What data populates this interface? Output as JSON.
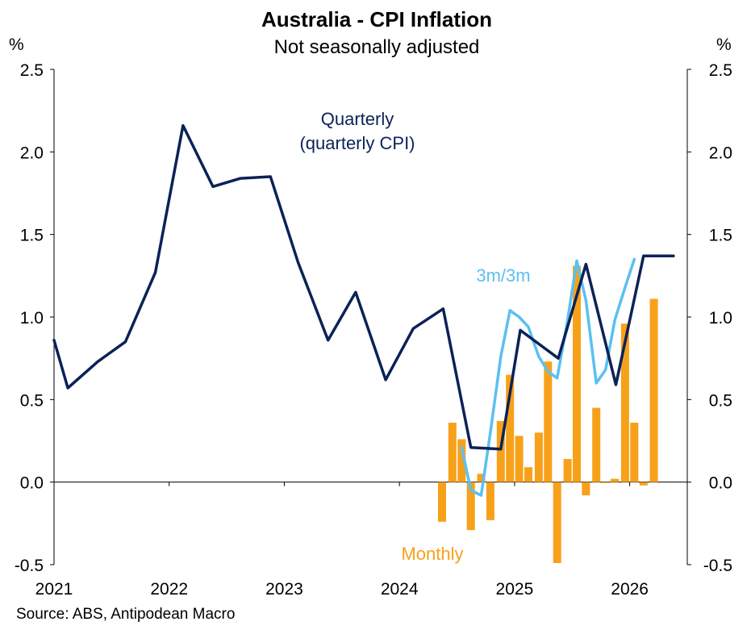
{
  "chart_data": {
    "type": "line+bar",
    "title": "Australia - CPI Inflation",
    "subtitle": "Not seasonally adjusted",
    "y_unit_left": "%",
    "y_unit_right": "%",
    "ylim": [
      -0.5,
      2.5
    ],
    "yticks": [
      "2.5",
      "2.0",
      "1.5",
      "1.0",
      "0.5",
      "0.0",
      "-0.5"
    ],
    "x_range": [
      2021.0,
      2026.5
    ],
    "x_tick_labels": [
      "2021",
      "2022",
      "2023",
      "2024",
      "2025",
      "2026"
    ],
    "grid": false,
    "source": "Source: ABS, Antipodean Macro",
    "annotations": {
      "quarterly_line1": "Quarterly",
      "quarterly_line2": "(quarterly CPI)",
      "three_month": "3m/3m",
      "monthly": "Monthly"
    },
    "colors": {
      "quarterly": "#0b2257",
      "three_month": "#5bc0f0",
      "monthly": "#f7a11a",
      "axis": "#000000"
    },
    "series": [
      {
        "name": "Quarterly (quarterly CPI)",
        "kind": "line",
        "x": [
          2021.0,
          2021.12,
          2021.38,
          2021.62,
          2021.88,
          2022.12,
          2022.38,
          2022.62,
          2022.88,
          2023.12,
          2023.38,
          2023.62,
          2023.88,
          2024.12,
          2024.38,
          2024.62,
          2024.88,
          2025.05,
          2025.38,
          2025.62,
          2025.88,
          2026.12,
          2026.38
        ],
        "values": [
          0.86,
          0.57,
          0.73,
          0.85,
          1.27,
          2.16,
          1.79,
          1.84,
          1.85,
          1.33,
          0.86,
          1.15,
          0.62,
          0.93,
          1.05,
          0.21,
          0.2,
          0.92,
          0.75,
          1.32,
          0.59,
          1.37,
          1.37
        ]
      },
      {
        "name": "3m/3m",
        "kind": "line",
        "x": [
          2024.54,
          2024.62,
          2024.71,
          2024.79,
          2024.88,
          2024.96,
          2025.04,
          2025.12,
          2025.21,
          2025.29,
          2025.37,
          2025.46,
          2025.54,
          2025.62,
          2025.71,
          2025.79,
          2025.87,
          2025.96,
          2026.04
        ],
        "values": [
          0.21,
          -0.05,
          -0.08,
          0.3,
          0.76,
          1.04,
          1.0,
          0.94,
          0.76,
          0.67,
          0.63,
          0.98,
          1.34,
          1.1,
          0.6,
          0.68,
          0.98,
          1.18,
          1.35
        ]
      },
      {
        "name": "Monthly",
        "kind": "bar",
        "x": [
          2024.37,
          2024.46,
          2024.54,
          2024.62,
          2024.71,
          2024.79,
          2024.88,
          2024.96,
          2025.04,
          2025.12,
          2025.21,
          2025.29,
          2025.37,
          2025.46,
          2025.54,
          2025.62,
          2025.71,
          2025.79,
          2025.87,
          2025.96,
          2026.04,
          2026.12
        ],
        "values": [
          -0.24,
          0.36,
          0.26,
          -0.29,
          0.05,
          -0.23,
          0.37,
          0.65,
          0.28,
          0.09,
          0.3,
          0.73,
          -0.49,
          0.14,
          1.31,
          -0.08,
          0.45,
          0.0,
          0.02,
          0.96,
          0.36,
          -0.02
        ]
      },
      {
        "name": "Monthly (latest)",
        "kind": "bar",
        "x": [
          2026.21
        ],
        "values": [
          1.11
        ]
      }
    ]
  }
}
